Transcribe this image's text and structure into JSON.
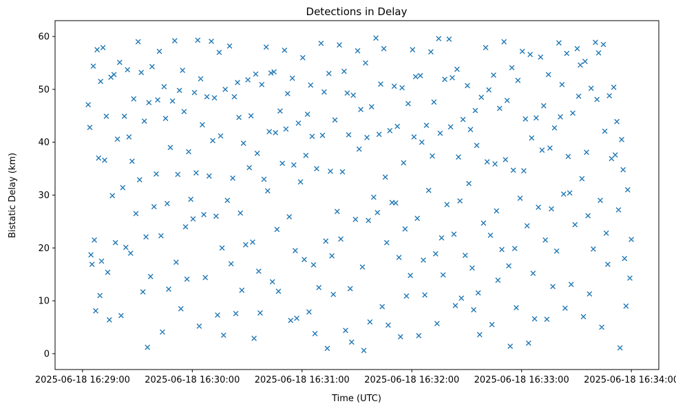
{
  "chart_data": {
    "type": "scatter",
    "title": "Detections in Delay",
    "xlabel": "Time (UTC)",
    "ylabel": "Bistatic Delay (km)",
    "marker": "x",
    "marker_color": "#1f77b4",
    "legend": "none",
    "grid": false,
    "x_axis": {
      "tick_labels": [
        "2025-06-18 16:29:00",
        "2025-06-18 16:30:00",
        "2025-06-18 16:31:00",
        "2025-06-18 16:32:00",
        "2025-06-18 16:33:00",
        "2025-06-18 16:34:00"
      ],
      "tick_seconds": [
        0,
        60,
        120,
        180,
        240,
        300
      ],
      "range_seconds": [
        -15,
        315
      ]
    },
    "y_axis": {
      "ticks": [
        0,
        10,
        20,
        30,
        40,
        50,
        60
      ],
      "range": [
        -3,
        63
      ]
    },
    "x_unit": "seconds after first x tick (16:29:00 UTC)",
    "points": [
      [
        3.1,
        47.1
      ],
      [
        4,
        42.8
      ],
      [
        4.6,
        18.7
      ],
      [
        5.2,
        16.9
      ],
      [
        5.9,
        54.4
      ],
      [
        6.5,
        21.5
      ],
      [
        7.2,
        8.1
      ],
      [
        8,
        57.5
      ],
      [
        8.8,
        37
      ],
      [
        9.5,
        11
      ],
      [
        9.9,
        51.5
      ],
      [
        10.4,
        17.5
      ],
      [
        11.2,
        57.9
      ],
      [
        12.1,
        36.6
      ],
      [
        13,
        44.9
      ],
      [
        13.8,
        15.4
      ],
      [
        14.7,
        6.4
      ],
      [
        15.5,
        52.3
      ],
      [
        16.3,
        29.9
      ],
      [
        17.2,
        52.8
      ],
      [
        18,
        21
      ],
      [
        19.1,
        40.6
      ],
      [
        20.3,
        55.1
      ],
      [
        21.1,
        7.2
      ],
      [
        22,
        31.4
      ],
      [
        22.9,
        44.9
      ],
      [
        23.7,
        20.1
      ],
      [
        24.6,
        53.7
      ],
      [
        25.4,
        41
      ],
      [
        26.3,
        19
      ],
      [
        27.1,
        36.4
      ],
      [
        28,
        48.2
      ],
      [
        29.2,
        26.5
      ],
      [
        30.4,
        59
      ],
      [
        31.2,
        32.9
      ],
      [
        32.1,
        53.2
      ],
      [
        33,
        11.7
      ],
      [
        33.8,
        44
      ],
      [
        34.7,
        22.1
      ],
      [
        35.5,
        1.2
      ],
      [
        36.3,
        47.5
      ],
      [
        37.2,
        14.6
      ],
      [
        38,
        54.3
      ],
      [
        39.1,
        27.8
      ],
      [
        40.3,
        34
      ],
      [
        41.1,
        48
      ],
      [
        42,
        57.2
      ],
      [
        42.9,
        22.3
      ],
      [
        43.7,
        4.1
      ],
      [
        44.6,
        50.5
      ],
      [
        45.4,
        44.5
      ],
      [
        46.3,
        28.4
      ],
      [
        47.1,
        12.2
      ],
      [
        48,
        39
      ],
      [
        49.2,
        47.8
      ],
      [
        50.4,
        59.2
      ],
      [
        51.2,
        17.3
      ],
      [
        52.1,
        33.9
      ],
      [
        53,
        49.8
      ],
      [
        53.8,
        8.5
      ],
      [
        54.7,
        53.6
      ],
      [
        55.5,
        45.8
      ],
      [
        56.3,
        24
      ],
      [
        57.1,
        14.1
      ],
      [
        58,
        38.2
      ],
      [
        59.2,
        29.2
      ],
      [
        60.4,
        25.5
      ],
      [
        61.2,
        49.4
      ],
      [
        62.1,
        34.2
      ],
      [
        63,
        59.3
      ],
      [
        63.8,
        5.2
      ],
      [
        64.6,
        52
      ],
      [
        65.5,
        43.3
      ],
      [
        66.3,
        26.3
      ],
      [
        67.1,
        14.4
      ],
      [
        68,
        48.6
      ],
      [
        69.2,
        33.6
      ],
      [
        70.4,
        59.1
      ],
      [
        71.2,
        40.3
      ],
      [
        72.1,
        48.4
      ],
      [
        73,
        26
      ],
      [
        73.8,
        7.3
      ],
      [
        74.7,
        57
      ],
      [
        75.5,
        41.2
      ],
      [
        76.3,
        20
      ],
      [
        77.1,
        3.5
      ],
      [
        78,
        50
      ],
      [
        79.2,
        29
      ],
      [
        80.4,
        58.2
      ],
      [
        81.2,
        17
      ],
      [
        82.1,
        33.2
      ],
      [
        83,
        48.6
      ],
      [
        83.8,
        7.6
      ],
      [
        84.7,
        51.3
      ],
      [
        85.5,
        44.7
      ],
      [
        86.3,
        26.6
      ],
      [
        87.1,
        12
      ],
      [
        88,
        39.8
      ],
      [
        89.2,
        20.6
      ],
      [
        90.4,
        51.8
      ],
      [
        91.2,
        35.2
      ],
      [
        92.1,
        45
      ],
      [
        93,
        21.1
      ],
      [
        93.8,
        2.9
      ],
      [
        94.7,
        52.9
      ],
      [
        95.5,
        37.9
      ],
      [
        96.3,
        15.6
      ],
      [
        97.1,
        7.7
      ],
      [
        98,
        50.9
      ],
      [
        99.2,
        33
      ],
      [
        100.4,
        58
      ],
      [
        101.2,
        30.8
      ],
      [
        102.1,
        42
      ],
      [
        103,
        53.1
      ],
      [
        103.8,
        13.6
      ],
      [
        104.7,
        53.3
      ],
      [
        105.5,
        41.8
      ],
      [
        106.3,
        23.5
      ],
      [
        107.1,
        11.8
      ],
      [
        108,
        45.9
      ],
      [
        109.2,
        36
      ],
      [
        110.4,
        57.4
      ],
      [
        111.2,
        42.5
      ],
      [
        112.1,
        49.2
      ],
      [
        113,
        25.9
      ],
      [
        113.8,
        6.3
      ],
      [
        114.7,
        52.1
      ],
      [
        115.5,
        35.7
      ],
      [
        116.3,
        19.5
      ],
      [
        117.1,
        6.7
      ],
      [
        118,
        43.6
      ],
      [
        119.2,
        32.5
      ],
      [
        120.4,
        56
      ],
      [
        121.2,
        17.8
      ],
      [
        122.1,
        37.5
      ],
      [
        123,
        45.3
      ],
      [
        123.8,
        7.9
      ],
      [
        124.7,
        50.8
      ],
      [
        125.5,
        41.1
      ],
      [
        126.3,
        16.8
      ],
      [
        127.1,
        3.8
      ],
      [
        128,
        35
      ],
      [
        129.2,
        12.5
      ],
      [
        130.4,
        58.7
      ],
      [
        131.2,
        41.3
      ],
      [
        132.1,
        49.5
      ],
      [
        133,
        21.3
      ],
      [
        133.8,
        1
      ],
      [
        134.7,
        53
      ],
      [
        135.5,
        34.5
      ],
      [
        136.3,
        18.5
      ],
      [
        137.1,
        11.2
      ],
      [
        138,
        44.2
      ],
      [
        139.2,
        26.9
      ],
      [
        140.4,
        58.4
      ],
      [
        141.2,
        21.7
      ],
      [
        142.1,
        34.4
      ],
      [
        143,
        53.4
      ],
      [
        143.8,
        4.4
      ],
      [
        144.7,
        49.3
      ],
      [
        145.5,
        41.4
      ],
      [
        146.3,
        12.3
      ],
      [
        147.1,
        2.2
      ],
      [
        148,
        48.9
      ],
      [
        149.2,
        25.4
      ],
      [
        150.4,
        57.3
      ],
      [
        151.2,
        38.7
      ],
      [
        152.1,
        46.2
      ],
      [
        153,
        16.4
      ],
      [
        153.8,
        0.6
      ],
      [
        154.7,
        55
      ],
      [
        155.5,
        40.9
      ],
      [
        156.3,
        25.2
      ],
      [
        157.1,
        6
      ],
      [
        158,
        46.7
      ],
      [
        159.2,
        29.6
      ],
      [
        160.4,
        59.7
      ],
      [
        161.2,
        26.7
      ],
      [
        162.1,
        41.5
      ],
      [
        163,
        51
      ],
      [
        163.8,
        8.9
      ],
      [
        164.7,
        57.7
      ],
      [
        165.5,
        33.4
      ],
      [
        166.3,
        21
      ],
      [
        167.1,
        5.4
      ],
      [
        168,
        42.2
      ],
      [
        169.2,
        28.6
      ],
      [
        170.4,
        50.6
      ],
      [
        171.2,
        28.5
      ],
      [
        172.1,
        43
      ],
      [
        173,
        18.2
      ],
      [
        173.8,
        3.2
      ],
      [
        174.7,
        50.3
      ],
      [
        175.5,
        36.1
      ],
      [
        176.3,
        23.6
      ],
      [
        177.1,
        10.9
      ],
      [
        178,
        47.3
      ],
      [
        179.2,
        14.8
      ],
      [
        180.4,
        57.5
      ],
      [
        181.2,
        41
      ],
      [
        182.1,
        52.4
      ],
      [
        183,
        25.6
      ],
      [
        183.8,
        3.4
      ],
      [
        184.7,
        52.6
      ],
      [
        185.5,
        40
      ],
      [
        186.3,
        17.7
      ],
      [
        187.1,
        11.1
      ],
      [
        188,
        43.2
      ],
      [
        189.2,
        30.9
      ],
      [
        190.4,
        57.1
      ],
      [
        191.2,
        37.4
      ],
      [
        192.1,
        47.6
      ],
      [
        193,
        18.9
      ],
      [
        193.8,
        5.7
      ],
      [
        194.7,
        59.6
      ],
      [
        195.5,
        41.7
      ],
      [
        196.3,
        21.9
      ],
      [
        197.1,
        14.9
      ],
      [
        198,
        51.9
      ],
      [
        199.2,
        28.2
      ],
      [
        200.4,
        59.5
      ],
      [
        201.2,
        42.9
      ],
      [
        202.1,
        52.2
      ],
      [
        203,
        22.6
      ],
      [
        203.8,
        9.1
      ],
      [
        204.7,
        53.8
      ],
      [
        205.5,
        37.2
      ],
      [
        206.3,
        28.9
      ],
      [
        207.1,
        10.5
      ],
      [
        208,
        44.3
      ],
      [
        209.2,
        18.6
      ],
      [
        210.4,
        50.7
      ],
      [
        211.2,
        32.2
      ],
      [
        212.1,
        42.4
      ],
      [
        213,
        16.2
      ],
      [
        213.8,
        8.3
      ],
      [
        214.7,
        46
      ],
      [
        215.5,
        39.4
      ],
      [
        216.3,
        11.5
      ],
      [
        217.1,
        3.6
      ],
      [
        218,
        48.5
      ],
      [
        219.2,
        24.7
      ],
      [
        220.4,
        57.9
      ],
      [
        221.2,
        36.3
      ],
      [
        222.1,
        49.9
      ],
      [
        223,
        22.4
      ],
      [
        223.8,
        5.5
      ],
      [
        224.7,
        52.7
      ],
      [
        225.5,
        35.9
      ],
      [
        226.3,
        27
      ],
      [
        227.1,
        13.9
      ],
      [
        228,
        46.4
      ],
      [
        229.2,
        19.7
      ],
      [
        230.4,
        59
      ],
      [
        231.2,
        36.7
      ],
      [
        232.1,
        47.9
      ],
      [
        233,
        16.6
      ],
      [
        233.8,
        1.4
      ],
      [
        234.7,
        54.1
      ],
      [
        235.5,
        34.7
      ],
      [
        236.3,
        19.9
      ],
      [
        237.1,
        8.7
      ],
      [
        238,
        51.7
      ],
      [
        239.2,
        29.4
      ],
      [
        240.4,
        57.2
      ],
      [
        241.2,
        34.6
      ],
      [
        242.1,
        44.4
      ],
      [
        243,
        24.2
      ],
      [
        243.8,
        2
      ],
      [
        244.7,
        56.6
      ],
      [
        245.5,
        40.8
      ],
      [
        246.3,
        15.2
      ],
      [
        247.1,
        6.6
      ],
      [
        248,
        44.6
      ],
      [
        249.2,
        27.7
      ],
      [
        250.4,
        56.1
      ],
      [
        251.2,
        38.5
      ],
      [
        252.1,
        46.9
      ],
      [
        253,
        21.5
      ],
      [
        253.8,
        6.5
      ],
      [
        254.7,
        52.8
      ],
      [
        255.5,
        38.9
      ],
      [
        256.3,
        27.4
      ],
      [
        257.1,
        12.7
      ],
      [
        258,
        42.7
      ],
      [
        259.2,
        19.4
      ],
      [
        260.4,
        58.8
      ],
      [
        261.2,
        44.8
      ],
      [
        262.1,
        50.9
      ],
      [
        263,
        30.2
      ],
      [
        263.8,
        8.6
      ],
      [
        264.7,
        56.8
      ],
      [
        265.5,
        37.3
      ],
      [
        266.3,
        30.4
      ],
      [
        267.1,
        13.1
      ],
      [
        268,
        45.5
      ],
      [
        269.2,
        24.4
      ],
      [
        270.4,
        57.7
      ],
      [
        271.2,
        48.7
      ],
      [
        272.1,
        54.6
      ],
      [
        273,
        33.1
      ],
      [
        273.8,
        7
      ],
      [
        274.7,
        55.3
      ],
      [
        275.5,
        38.1
      ],
      [
        276.3,
        26.1
      ],
      [
        277.1,
        11.3
      ],
      [
        278,
        50.2
      ],
      [
        279.2,
        19.8
      ],
      [
        280.4,
        58.9
      ],
      [
        281.2,
        48.1
      ],
      [
        282.1,
        56.9
      ],
      [
        283,
        29
      ],
      [
        283.8,
        5
      ],
      [
        284.7,
        58.5
      ],
      [
        285.5,
        42.1
      ],
      [
        286.3,
        22.8
      ],
      [
        287.1,
        16.9
      ],
      [
        288,
        48.8
      ],
      [
        289.2,
        36.9
      ],
      [
        290.4,
        50.4
      ],
      [
        291.2,
        37.6
      ],
      [
        292.1,
        43.9
      ],
      [
        293,
        27.2
      ],
      [
        293.8,
        1.1
      ],
      [
        294.7,
        40.5
      ],
      [
        295.5,
        34.8
      ],
      [
        296.3,
        18
      ],
      [
        297.1,
        9
      ],
      [
        298,
        31
      ],
      [
        299.2,
        14.3
      ],
      [
        300,
        21.6
      ]
    ]
  }
}
